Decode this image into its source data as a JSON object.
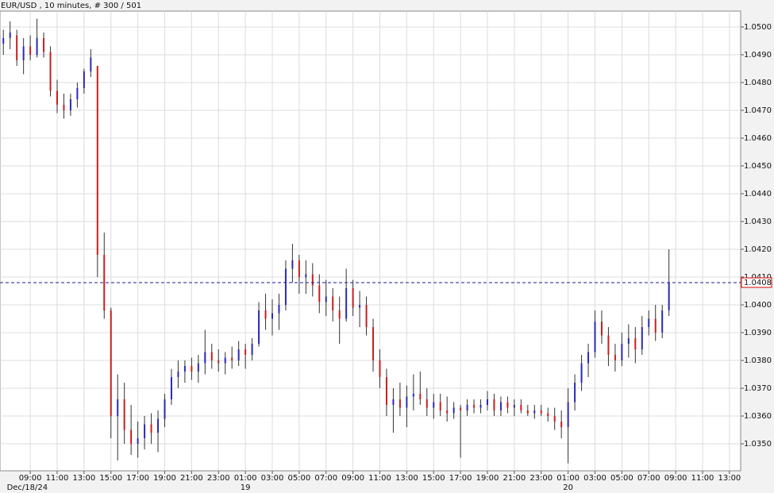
{
  "chart_data": {
    "type": "ohlc",
    "title": "EUR/USD , 10 minutes, # 300 / 501",
    "up_color": "#2a2ab8",
    "down_color": "#c81e1e",
    "grid": true,
    "x": [
      0,
      3,
      6,
      9,
      12,
      15,
      18,
      21,
      24,
      27,
      30,
      33,
      36,
      39,
      42,
      45,
      48,
      51,
      54,
      57,
      60,
      63,
      66,
      69,
      72,
      75,
      78,
      81,
      84,
      87,
      90,
      93,
      96,
      99,
      102,
      105,
      108,
      111,
      114,
      117,
      120,
      123,
      126,
      129,
      132,
      135,
      138,
      141,
      144,
      147,
      150,
      153,
      156,
      159,
      162,
      165,
      168,
      171,
      174,
      177,
      180,
      183,
      186,
      189,
      192,
      195,
      198,
      201,
      204,
      207,
      210,
      213,
      216,
      219,
      222,
      225,
      228,
      231,
      234,
      237,
      240,
      243,
      246,
      249,
      252,
      255,
      258,
      261,
      264,
      267,
      270,
      273,
      276,
      279,
      282,
      285,
      288,
      291,
      294,
      297
    ],
    "open": [
      1.0494,
      1.0496,
      1.0497,
      1.0488,
      1.0493,
      1.049,
      1.0496,
      1.0491,
      1.0477,
      1.0472,
      1.047,
      1.0474,
      1.0478,
      1.0484,
      1.0486,
      1.0418,
      1.0398,
      1.036,
      1.0366,
      1.0355,
      1.035,
      1.0352,
      1.0357,
      1.0354,
      1.0359,
      1.0366,
      1.0374,
      1.0376,
      1.0378,
      1.0376,
      1.0379,
      1.0383,
      1.038,
      1.0379,
      1.0381,
      1.038,
      1.0384,
      1.0382,
      1.0386,
      1.0398,
      1.0395,
      1.0397,
      1.04,
      1.0413,
      1.0416,
      1.041,
      1.0411,
      1.0407,
      1.0401,
      1.0403,
      1.0398,
      1.0395,
      1.0406,
      1.0399,
      1.04,
      1.0392,
      1.038,
      1.0374,
      1.0364,
      1.0366,
      1.0363,
      1.0367,
      1.0368,
      1.0366,
      1.0363,
      1.0365,
      1.0362,
      1.0361,
      1.0363,
      1.0362,
      1.0364,
      1.0363,
      1.0364,
      1.0366,
      1.0362,
      1.0365,
      1.0363,
      1.0364,
      1.0362,
      1.0361,
      1.0362,
      1.0361,
      1.036,
      1.0358,
      1.0356,
      1.0365,
      1.0372,
      1.0379,
      1.0383,
      1.0394,
      1.0389,
      1.0382,
      1.038,
      1.0386,
      1.0388,
      1.0384,
      1.0392,
      1.0395,
      1.039,
      1.0398
    ],
    "high": [
      1.0499,
      1.0502,
      1.0499,
      1.0496,
      1.0497,
      1.0503,
      1.0498,
      1.0493,
      1.0481,
      1.0476,
      1.0476,
      1.048,
      1.0485,
      1.0492,
      1.0486,
      1.0426,
      1.0399,
      1.0375,
      1.0372,
      1.0364,
      1.0358,
      1.036,
      1.0361,
      1.0362,
      1.0368,
      1.0377,
      1.038,
      1.038,
      1.0381,
      1.0382,
      1.0391,
      1.0386,
      1.0384,
      1.0383,
      1.0385,
      1.0387,
      1.0386,
      1.0388,
      1.0401,
      1.0404,
      1.0402,
      1.0404,
      1.0416,
      1.0422,
      1.0418,
      1.0416,
      1.0415,
      1.0411,
      1.0409,
      1.0406,
      1.0403,
      1.0413,
      1.0409,
      1.0405,
      1.0403,
      1.0395,
      1.0384,
      1.0377,
      1.037,
      1.0372,
      1.0371,
      1.0375,
      1.0376,
      1.037,
      1.0368,
      1.0368,
      1.0367,
      1.0365,
      1.0364,
      1.0366,
      1.0366,
      1.0366,
      1.0369,
      1.0368,
      1.0367,
      1.0367,
      1.0366,
      1.0366,
      1.0364,
      1.0364,
      1.0364,
      1.0363,
      1.0363,
      1.0362,
      1.037,
      1.0375,
      1.0382,
      1.0386,
      1.0398,
      1.0398,
      1.0392,
      1.0386,
      1.039,
      1.0393,
      1.0392,
      1.0396,
      1.0398,
      1.04,
      1.04,
      1.042
    ],
    "low": [
      1.049,
      1.0492,
      1.0486,
      1.0483,
      1.0488,
      1.0489,
      1.0489,
      1.0475,
      1.0469,
      1.0467,
      1.0468,
      1.0471,
      1.0476,
      1.0482,
      1.041,
      1.0395,
      1.0352,
      1.0344,
      1.035,
      1.0346,
      1.0345,
      1.0348,
      1.035,
      1.0347,
      1.0356,
      1.0364,
      1.037,
      1.0372,
      1.0373,
      1.0372,
      1.0375,
      1.0377,
      1.0376,
      1.0375,
      1.0377,
      1.0378,
      1.0377,
      1.038,
      1.0385,
      1.0391,
      1.0389,
      1.0391,
      1.0398,
      1.0408,
      1.0404,
      1.0404,
      1.0403,
      1.0397,
      1.0396,
      1.0394,
      1.0386,
      1.0394,
      1.0396,
      1.0392,
      1.0389,
      1.0376,
      1.037,
      1.036,
      1.0354,
      1.036,
      1.0356,
      1.0362,
      1.0364,
      1.036,
      1.0359,
      1.036,
      1.0358,
      1.0359,
      1.0345,
      1.036,
      1.0361,
      1.0361,
      1.0362,
      1.036,
      1.036,
      1.0361,
      1.036,
      1.0361,
      1.036,
      1.0359,
      1.036,
      1.0358,
      1.0355,
      1.0352,
      1.0343,
      1.0362,
      1.0369,
      1.0374,
      1.0381,
      1.0386,
      1.0378,
      1.0376,
      1.0378,
      1.0381,
      1.0379,
      1.0382,
      1.0389,
      1.0387,
      1.0388,
      1.0396
    ],
    "close": [
      1.0496,
      1.0498,
      1.0488,
      1.0493,
      1.049,
      1.0496,
      1.0491,
      1.0477,
      1.0472,
      1.047,
      1.0474,
      1.0478,
      1.0484,
      1.0489,
      1.0418,
      1.0398,
      1.036,
      1.0366,
      1.0355,
      1.035,
      1.0352,
      1.0357,
      1.0354,
      1.0359,
      1.0366,
      1.0374,
      1.0376,
      1.0378,
      1.0376,
      1.0379,
      1.0383,
      1.038,
      1.0379,
      1.0381,
      1.038,
      1.0384,
      1.0382,
      1.0386,
      1.0398,
      1.0395,
      1.0397,
      1.04,
      1.0413,
      1.0416,
      1.041,
      1.0411,
      1.0407,
      1.0401,
      1.0403,
      1.0398,
      1.0395,
      1.0406,
      1.0399,
      1.04,
      1.0392,
      1.038,
      1.0374,
      1.0364,
      1.0366,
      1.0363,
      1.0367,
      1.0368,
      1.0366,
      1.0363,
      1.0365,
      1.0362,
      1.0361,
      1.0363,
      1.0362,
      1.0364,
      1.0363,
      1.0364,
      1.0366,
      1.0362,
      1.0365,
      1.0363,
      1.0364,
      1.0362,
      1.0361,
      1.0362,
      1.0361,
      1.036,
      1.0358,
      1.0356,
      1.0365,
      1.0372,
      1.0379,
      1.0383,
      1.0394,
      1.0389,
      1.0382,
      1.038,
      1.0386,
      1.0388,
      1.0384,
      1.0392,
      1.0395,
      1.039,
      1.0398,
      1.0408
    ],
    "xlim": [
      -1.5,
      329
    ],
    "ylim": [
      1.03403,
      1.05057
    ],
    "xticks": [
      {
        "value": 12,
        "label": "09:00"
      },
      {
        "value": 24,
        "label": "11:00"
      },
      {
        "value": 36,
        "label": "13:00"
      },
      {
        "value": 48,
        "label": "15:00"
      },
      {
        "value": 60,
        "label": "17:00"
      },
      {
        "value": 72,
        "label": "19:00"
      },
      {
        "value": 84,
        "label": "21:00"
      },
      {
        "value": 96,
        "label": "23:00"
      },
      {
        "value": 108,
        "label": "01:00"
      },
      {
        "value": 120,
        "label": "03:00"
      },
      {
        "value": 132,
        "label": "05:00"
      },
      {
        "value": 144,
        "label": "07:00"
      },
      {
        "value": 156,
        "label": "09:00"
      },
      {
        "value": 168,
        "label": "11:00"
      },
      {
        "value": 180,
        "label": "13:00"
      },
      {
        "value": 192,
        "label": "15:00"
      },
      {
        "value": 204,
        "label": "17:00"
      },
      {
        "value": 216,
        "label": "19:00"
      },
      {
        "value": 228,
        "label": "21:00"
      },
      {
        "value": 240,
        "label": "23:00"
      },
      {
        "value": 252,
        "label": "01:00"
      },
      {
        "value": 264,
        "label": "03:00"
      },
      {
        "value": 276,
        "label": "05:00"
      },
      {
        "value": 288,
        "label": "07:00"
      },
      {
        "value": 300,
        "label": "09:00"
      },
      {
        "value": 312,
        "label": "11:00"
      },
      {
        "value": 324,
        "label": "13:00"
      }
    ],
    "date_labels": [
      {
        "value": 12,
        "label": "Dec/18/24"
      },
      {
        "value": 108,
        "label": "19"
      },
      {
        "value": 252,
        "label": "20"
      }
    ],
    "yticks": [
      {
        "value": 1.035,
        "label": "1.0350"
      },
      {
        "value": 1.036,
        "label": "1.0360"
      },
      {
        "value": 1.037,
        "label": "1.0370"
      },
      {
        "value": 1.038,
        "label": "1.0380"
      },
      {
        "value": 1.039,
        "label": "1.0390"
      },
      {
        "value": 1.04,
        "label": "1.0400"
      },
      {
        "value": 1.041,
        "label": "1.0410"
      },
      {
        "value": 1.042,
        "label": "1.0420"
      },
      {
        "value": 1.043,
        "label": "1.0430"
      },
      {
        "value": 1.044,
        "label": "1.0440"
      },
      {
        "value": 1.045,
        "label": "1.0450"
      },
      {
        "value": 1.046,
        "label": "1.0460"
      },
      {
        "value": 1.047,
        "label": "1.0470"
      },
      {
        "value": 1.048,
        "label": "1.0480"
      },
      {
        "value": 1.049,
        "label": "1.0490"
      },
      {
        "value": 1.05,
        "label": "1.0500"
      }
    ],
    "last_price": {
      "value": 1.0408,
      "label": "1.0408"
    }
  }
}
